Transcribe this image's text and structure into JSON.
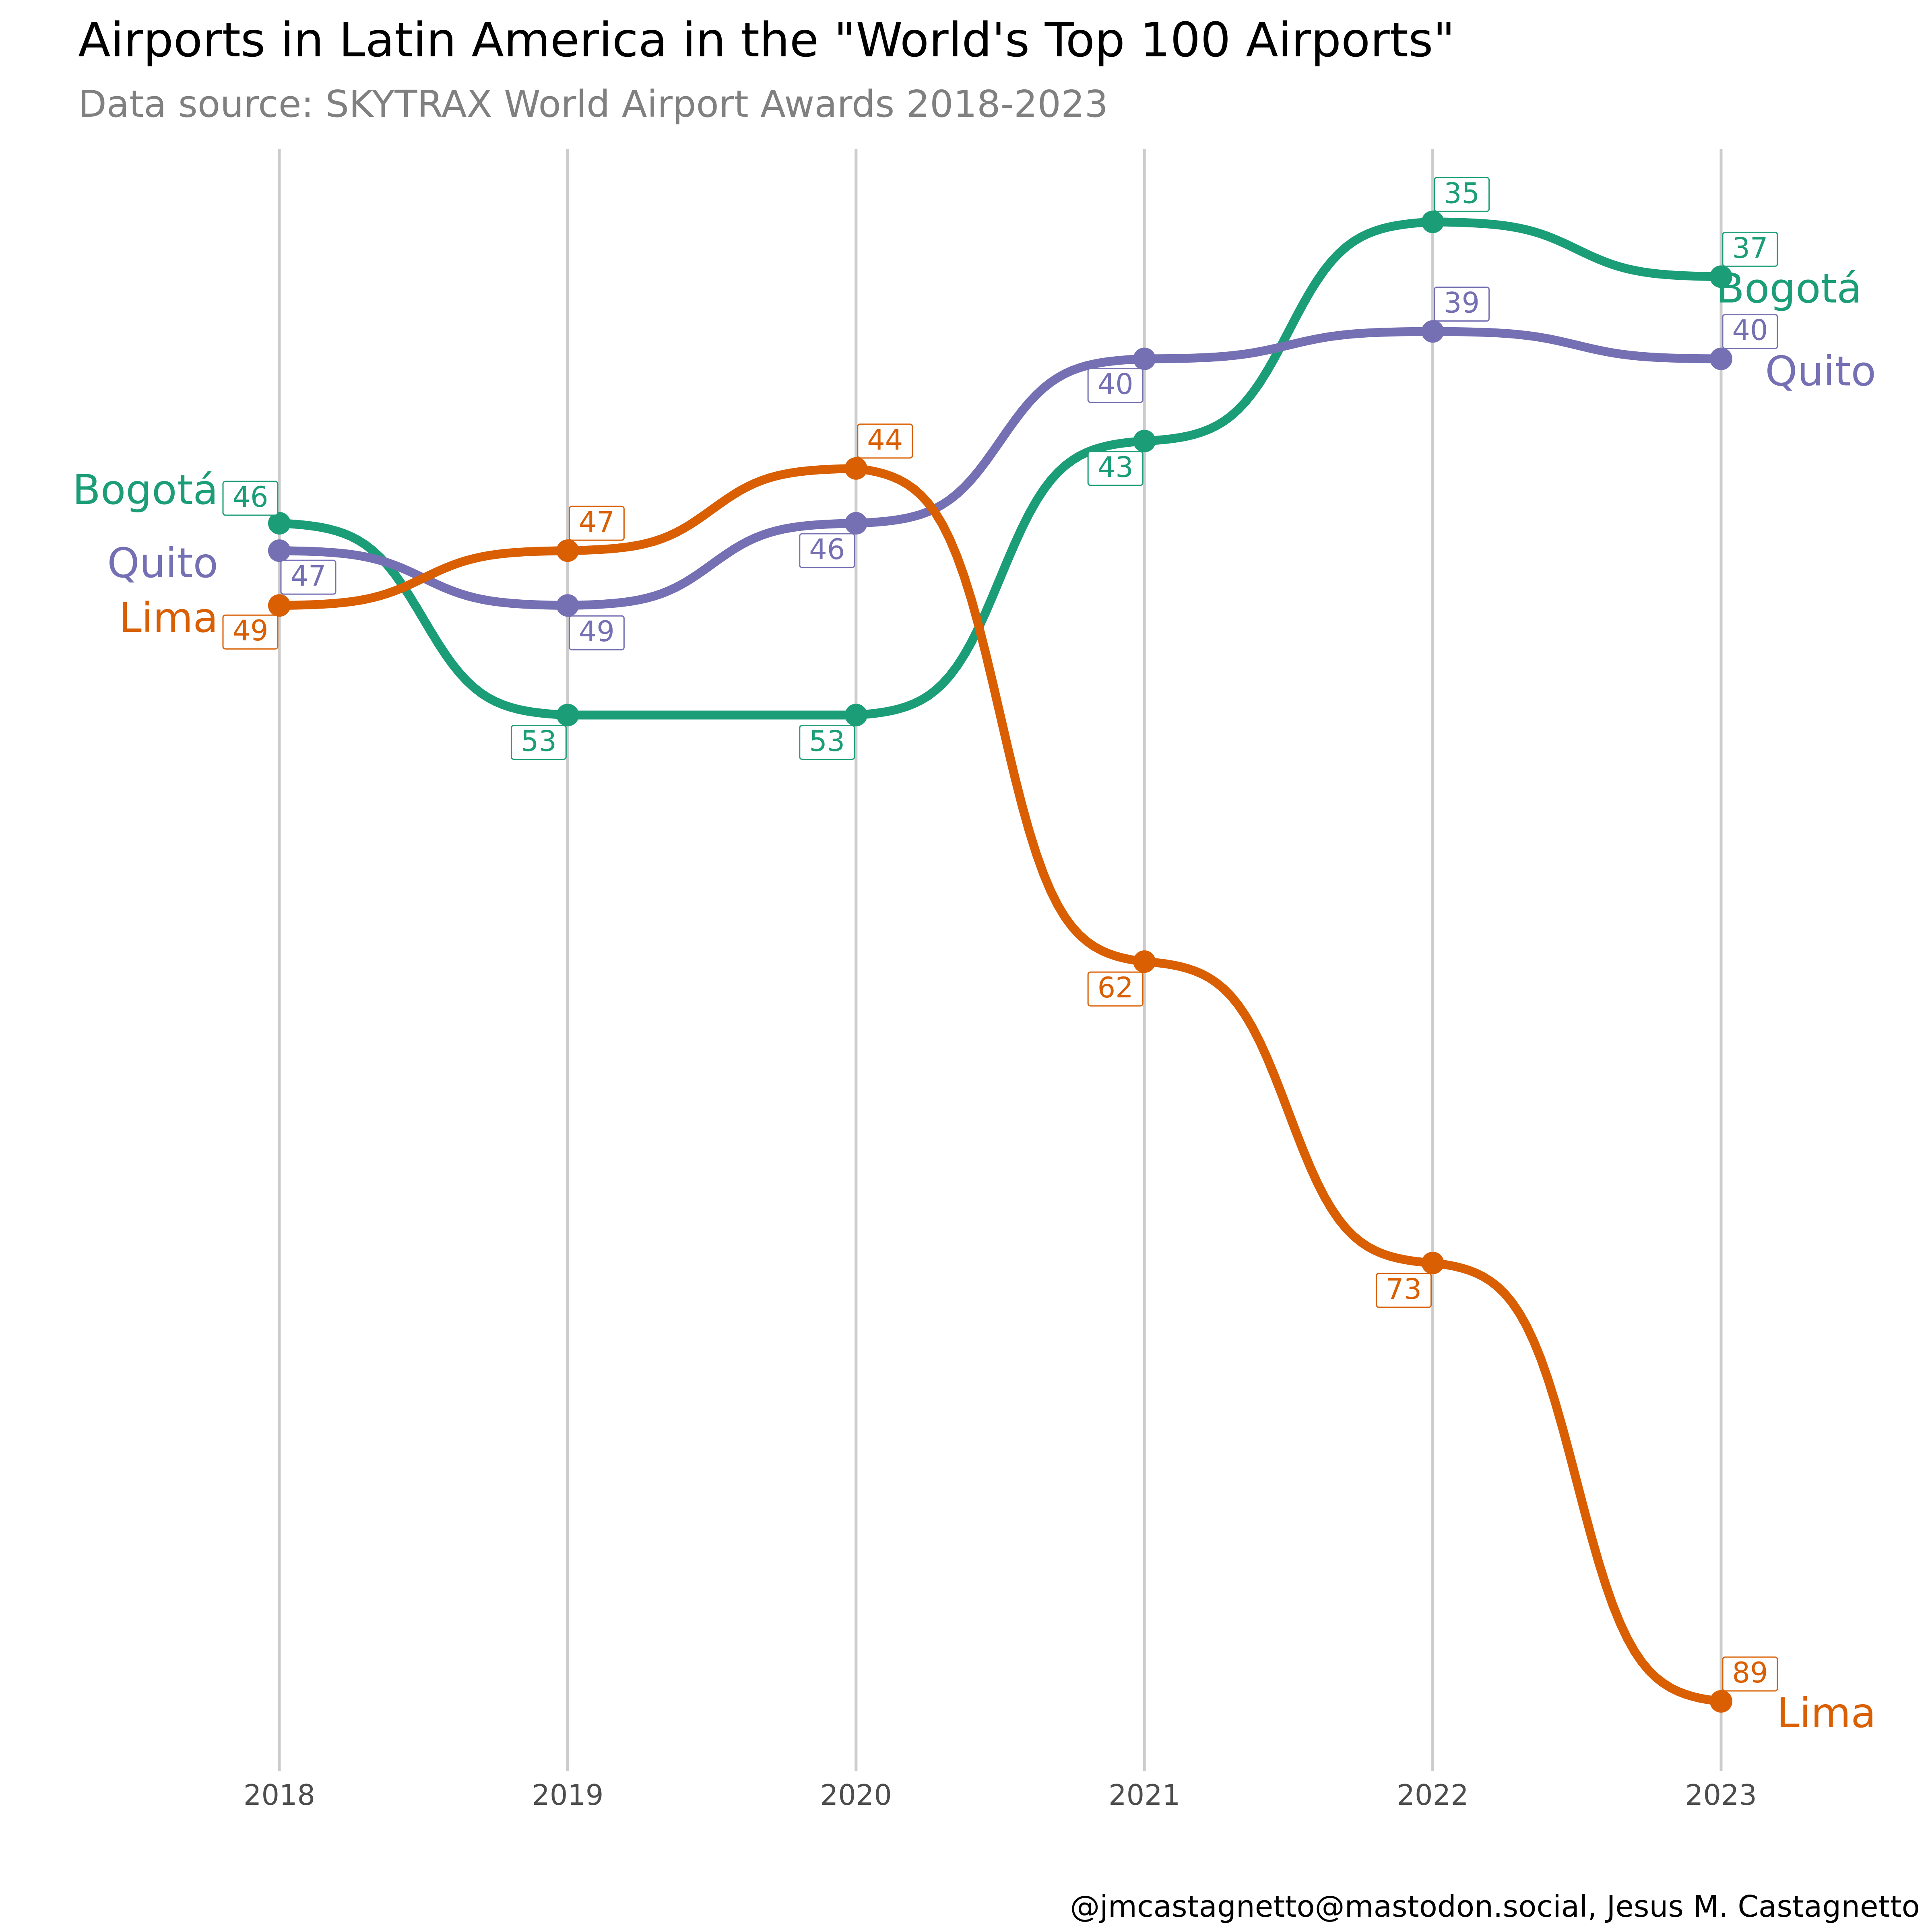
{
  "title": "Airports in Latin America in the \"World's Top 100 Airports\"",
  "subtitle": "Data source: SKYTRAX World Airport Awards 2018-2023",
  "caption": "@jmcastagnetto@mastodon.social, Jesus M. Castagnetto",
  "chart_data": {
    "type": "line",
    "title": "Airports in Latin America in the \"World's Top 100 Airports\"",
    "subtitle": "Data source: SKYTRAX World Airport Awards 2018-2023",
    "xlabel": "",
    "ylabel": "",
    "x": [
      2018,
      2019,
      2020,
      2021,
      2022,
      2023
    ],
    "y_reversed": true,
    "ylim": [
      32,
      92
    ],
    "grid": "vertical only",
    "legend": "none (direct labels at both ends)",
    "series": [
      {
        "name": "Bogotá",
        "color": "#1b9e77",
        "values": [
          46,
          53,
          53,
          43,
          35,
          37
        ]
      },
      {
        "name": "Quito",
        "color": "#7570b3",
        "values": [
          47,
          49,
          46,
          40,
          39,
          40
        ]
      },
      {
        "name": "Lima",
        "color": "#d95f02",
        "values": [
          49,
          47,
          44,
          62,
          73,
          89
        ]
      }
    ]
  }
}
